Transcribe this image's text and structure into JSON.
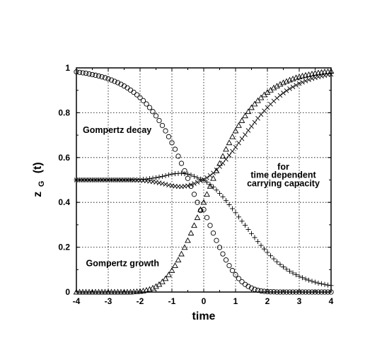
{
  "chart_data": {
    "type": "scatter",
    "title": "",
    "xlabel": "time",
    "ylabel": {
      "main": "z",
      "sub": "G",
      "suffix": "(t)"
    },
    "xlim": [
      -4,
      4
    ],
    "ylim": [
      0,
      1
    ],
    "xticks": [
      "-4",
      "-3",
      "-2",
      "-1",
      "0",
      "1",
      "2",
      "3",
      "4"
    ],
    "yticks": [
      "0",
      "0.2",
      "0.4",
      "0.6",
      "0.8",
      "1"
    ],
    "grid": true,
    "grid_style": "dotted",
    "annotations": [
      {
        "text": "Gompertz decay",
        "x": -3.8,
        "y": 0.71
      },
      {
        "text": "for",
        "x": 2.5,
        "y": 0.545
      },
      {
        "text": "time dependent",
        "x": 2.5,
        "y": 0.51
      },
      {
        "text": "carrying capacity",
        "x": 2.5,
        "y": 0.472
      },
      {
        "text": "Gompertz growth",
        "x": -3.7,
        "y": 0.115
      }
    ],
    "series": [
      {
        "marker": "circle",
        "x": [
          -4.0,
          -3.9,
          -3.8,
          -3.7,
          -3.6,
          -3.5,
          -3.4,
          -3.3,
          -3.2,
          -3.1,
          -3.0,
          -2.9,
          -2.8,
          -2.7,
          -2.6,
          -2.5,
          -2.4,
          -2.3,
          -2.2,
          -2.1,
          -2.0,
          -1.9,
          -1.8,
          -1.7,
          -1.6,
          -1.5,
          -1.4,
          -1.3,
          -1.2,
          -1.1,
          -1.0,
          -0.9,
          -0.8,
          -0.7,
          -0.6,
          -0.5,
          -0.4,
          -0.3,
          -0.2,
          -0.1,
          0.0,
          0.1,
          0.2,
          0.3,
          0.4,
          0.5,
          0.6,
          0.7,
          0.8,
          0.9,
          1.0,
          1.1,
          1.2,
          1.3,
          1.4,
          1.5,
          1.6,
          1.7,
          1.8,
          1.9,
          2.0,
          2.1,
          2.2,
          2.3,
          2.4,
          2.5,
          2.6,
          2.7,
          2.8,
          2.9,
          3.0,
          3.1,
          3.2,
          3.3,
          3.4,
          3.5,
          3.6,
          3.7,
          3.8,
          3.9,
          4.0
        ],
        "y": [
          0.982,
          0.98,
          0.978,
          0.976,
          0.973,
          0.97,
          0.967,
          0.964,
          0.96,
          0.956,
          0.951,
          0.946,
          0.94,
          0.934,
          0.927,
          0.919,
          0.911,
          0.901,
          0.891,
          0.88,
          0.867,
          0.854,
          0.839,
          0.823,
          0.805,
          0.786,
          0.765,
          0.743,
          0.719,
          0.693,
          0.666,
          0.637,
          0.606,
          0.574,
          0.541,
          0.507,
          0.472,
          0.436,
          0.4,
          0.364,
          0.368,
          0.332,
          0.297,
          0.263,
          0.23,
          0.199,
          0.17,
          0.143,
          0.118,
          0.096,
          0.077,
          0.06,
          0.046,
          0.034,
          0.025,
          0.018,
          0.012,
          0.008,
          0.005,
          0.003,
          0.002,
          0.001,
          0.001,
          0.0,
          0.0,
          0.0,
          0.0,
          0.0,
          0.0,
          0.0,
          0.0,
          0.0,
          0.0,
          0.0,
          0.0,
          0.0,
          0.0,
          0.0,
          0.0,
          0.0,
          0.0
        ]
      },
      {
        "marker": "triangle",
        "x": [
          -4.0,
          -3.9,
          -3.8,
          -3.7,
          -3.6,
          -3.5,
          -3.4,
          -3.3,
          -3.2,
          -3.1,
          -3.0,
          -2.9,
          -2.8,
          -2.7,
          -2.6,
          -2.5,
          -2.4,
          -2.3,
          -2.2,
          -2.1,
          -2.0,
          -1.9,
          -1.8,
          -1.7,
          -1.6,
          -1.5,
          -1.4,
          -1.3,
          -1.2,
          -1.1,
          -1.0,
          -0.9,
          -0.8,
          -0.7,
          -0.6,
          -0.5,
          -0.4,
          -0.3,
          -0.2,
          -0.1,
          0.0,
          0.1,
          0.2,
          0.3,
          0.4,
          0.5,
          0.6,
          0.7,
          0.8,
          0.9,
          1.0,
          1.1,
          1.2,
          1.3,
          1.4,
          1.5,
          1.6,
          1.7,
          1.8,
          1.9,
          2.0,
          2.1,
          2.2,
          2.3,
          2.4,
          2.5,
          2.6,
          2.7,
          2.8,
          2.9,
          3.0,
          3.1,
          3.2,
          3.3,
          3.4,
          3.5,
          3.6,
          3.7,
          3.8,
          3.9,
          4.0
        ],
        "y": [
          0.0,
          0.0,
          0.0,
          0.0,
          0.0,
          0.0,
          0.0,
          0.0,
          0.0,
          0.0,
          0.0,
          0.0,
          0.0,
          0.0,
          0.0,
          0.0,
          0.0,
          0.0,
          0.001,
          0.002,
          0.003,
          0.005,
          0.008,
          0.012,
          0.018,
          0.025,
          0.034,
          0.046,
          0.06,
          0.077,
          0.096,
          0.118,
          0.143,
          0.17,
          0.199,
          0.23,
          0.263,
          0.297,
          0.332,
          0.368,
          0.4,
          0.436,
          0.472,
          0.507,
          0.541,
          0.574,
          0.606,
          0.637,
          0.666,
          0.693,
          0.719,
          0.743,
          0.765,
          0.786,
          0.805,
          0.823,
          0.839,
          0.854,
          0.867,
          0.88,
          0.891,
          0.901,
          0.911,
          0.919,
          0.927,
          0.934,
          0.94,
          0.946,
          0.951,
          0.956,
          0.96,
          0.964,
          0.967,
          0.97,
          0.973,
          0.976,
          0.978,
          0.98,
          0.982,
          0.983,
          0.985
        ]
      },
      {
        "marker": "x",
        "x": [
          -4.0,
          -3.9,
          -3.8,
          -3.7,
          -3.6,
          -3.5,
          -3.4,
          -3.3,
          -3.2,
          -3.1,
          -3.0,
          -2.9,
          -2.8,
          -2.7,
          -2.6,
          -2.5,
          -2.4,
          -2.3,
          -2.2,
          -2.1,
          -2.0,
          -1.9,
          -1.8,
          -1.7,
          -1.6,
          -1.5,
          -1.4,
          -1.3,
          -1.2,
          -1.1,
          -1.0,
          -0.9,
          -0.8,
          -0.7,
          -0.6,
          -0.5,
          -0.4,
          -0.3,
          -0.2,
          -0.1,
          0.0,
          0.1,
          0.2,
          0.3,
          0.4,
          0.5,
          0.6,
          0.7,
          0.8,
          0.9,
          1.0,
          1.1,
          1.2,
          1.3,
          1.4,
          1.5,
          1.6,
          1.7,
          1.8,
          1.9,
          2.0,
          2.1,
          2.2,
          2.3,
          2.4,
          2.5,
          2.6,
          2.7,
          2.8,
          2.9,
          3.0,
          3.1,
          3.2,
          3.3,
          3.4,
          3.5,
          3.6,
          3.7,
          3.8,
          3.9,
          4.0
        ],
        "y": [
          0.5,
          0.5,
          0.5,
          0.5,
          0.5,
          0.5,
          0.5,
          0.5,
          0.5,
          0.5,
          0.5,
          0.5,
          0.5,
          0.5,
          0.5,
          0.5,
          0.5,
          0.5,
          0.499,
          0.499,
          0.498,
          0.497,
          0.496,
          0.494,
          0.492,
          0.49,
          0.487,
          0.484,
          0.481,
          0.477,
          0.474,
          0.472,
          0.471,
          0.47,
          0.472,
          0.474,
          0.478,
          0.484,
          0.49,
          0.496,
          0.502,
          0.51,
          0.52,
          0.531,
          0.545,
          0.56,
          0.575,
          0.592,
          0.61,
          0.628,
          0.646,
          0.665,
          0.684,
          0.702,
          0.721,
          0.739,
          0.757,
          0.775,
          0.792,
          0.808,
          0.823,
          0.838,
          0.852,
          0.865,
          0.877,
          0.888,
          0.898,
          0.907,
          0.915,
          0.923,
          0.93,
          0.936,
          0.942,
          0.947,
          0.952,
          0.956,
          0.96,
          0.963,
          0.966,
          0.969,
          0.971
        ]
      },
      {
        "marker": "plus",
        "x": [
          -4.0,
          -3.9,
          -3.8,
          -3.7,
          -3.6,
          -3.5,
          -3.4,
          -3.3,
          -3.2,
          -3.1,
          -3.0,
          -2.9,
          -2.8,
          -2.7,
          -2.6,
          -2.5,
          -2.4,
          -2.3,
          -2.2,
          -2.1,
          -2.0,
          -1.9,
          -1.8,
          -1.7,
          -1.6,
          -1.5,
          -1.4,
          -1.3,
          -1.2,
          -1.1,
          -1.0,
          -0.9,
          -0.8,
          -0.7,
          -0.6,
          -0.5,
          -0.4,
          -0.3,
          -0.2,
          -0.1,
          0.0,
          0.1,
          0.2,
          0.3,
          0.4,
          0.5,
          0.6,
          0.7,
          0.8,
          0.9,
          1.0,
          1.1,
          1.2,
          1.3,
          1.4,
          1.5,
          1.6,
          1.7,
          1.8,
          1.9,
          2.0,
          2.1,
          2.2,
          2.3,
          2.4,
          2.5,
          2.6,
          2.7,
          2.8,
          2.9,
          3.0,
          3.1,
          3.2,
          3.3,
          3.4,
          3.5,
          3.6,
          3.7,
          3.8,
          3.9,
          4.0
        ],
        "y": [
          0.5,
          0.5,
          0.5,
          0.5,
          0.5,
          0.5,
          0.5,
          0.5,
          0.5,
          0.5,
          0.5,
          0.5,
          0.5,
          0.5,
          0.5,
          0.5,
          0.5,
          0.5,
          0.501,
          0.501,
          0.502,
          0.503,
          0.504,
          0.506,
          0.508,
          0.51,
          0.513,
          0.516,
          0.519,
          0.523,
          0.526,
          0.528,
          0.529,
          0.53,
          0.528,
          0.526,
          0.522,
          0.516,
          0.51,
          0.504,
          0.498,
          0.49,
          0.48,
          0.469,
          0.455,
          0.44,
          0.425,
          0.408,
          0.39,
          0.372,
          0.354,
          0.335,
          0.316,
          0.298,
          0.279,
          0.261,
          0.243,
          0.225,
          0.208,
          0.192,
          0.177,
          0.162,
          0.148,
          0.135,
          0.123,
          0.112,
          0.102,
          0.093,
          0.085,
          0.077,
          0.07,
          0.064,
          0.058,
          0.053,
          0.048,
          0.044,
          0.04,
          0.037,
          0.034,
          0.031,
          0.029
        ]
      }
    ]
  }
}
